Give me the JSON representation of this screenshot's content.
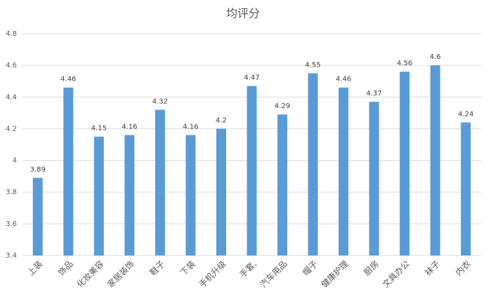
{
  "chart_data": {
    "type": "bar",
    "title": "均评分",
    "categories": [
      "上装",
      "饰品",
      "化妆美容",
      "家居装饰",
      "鞋子",
      "下装",
      "手机升级",
      "手套,",
      "汽车用品",
      "帽子",
      "健康护理",
      "厨房",
      "文具办公",
      "袜子",
      "内衣"
    ],
    "values": [
      3.89,
      4.46,
      4.15,
      4.16,
      4.32,
      4.16,
      4.2,
      4.47,
      4.29,
      4.55,
      4.46,
      4.37,
      4.56,
      4.6,
      4.24
    ],
    "color": "#5b9bd5",
    "ylim": [
      3.4,
      4.8
    ],
    "yticks": [
      3.4,
      3.6,
      3.8,
      4,
      4.2,
      4.4,
      4.6,
      4.8
    ],
    "grid": true
  }
}
